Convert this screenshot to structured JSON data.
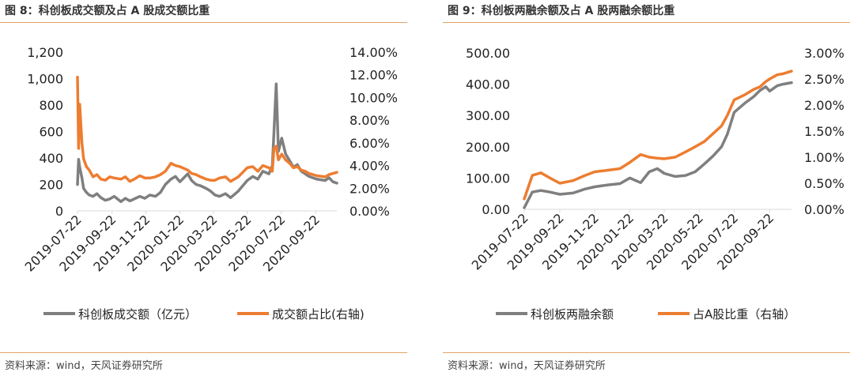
{
  "left": {
    "title": "图 8：科创板成交额及占 A 股成交额比重",
    "source": "资料来源：wind，天风证券研究所",
    "legend": [
      "科创板成交额（亿元）",
      "成交额占比(右轴)"
    ],
    "colors": {
      "gray": "#7f7f7f",
      "orange": "#ed7d31"
    }
  },
  "right": {
    "title": "图 9：科创板两融余额及占 A 股两融余额比重",
    "source": "资料来源：wind，天风证券研究所",
    "legend": [
      "科创板两融余额",
      "占A股比重（右轴）"
    ],
    "colors": {
      "gray": "#7f7f7f",
      "orange": "#ed7d31"
    }
  },
  "chart_data": [
    {
      "type": "line",
      "x_ticks": [
        "2019-07-22",
        "2019-09-22",
        "2019-11-22",
        "2020-01-22",
        "2020-03-22",
        "2020-05-22",
        "2020-07-22",
        "2020-09-22"
      ],
      "x_range": [
        "2019-07-22",
        "2020-10-30"
      ],
      "y_ticks": [
        "0",
        "200",
        "400",
        "600",
        "800",
        "1,000",
        "1,200"
      ],
      "ylim": [
        0,
        1200
      ],
      "y2_ticks": [
        "0.00%",
        "2.00%",
        "4.00%",
        "6.00%",
        "8.00%",
        "10.00%",
        "12.00%",
        "14.00%"
      ],
      "y2lim": [
        0,
        14
      ],
      "series": [
        {
          "name": "科创板成交额（亿元）",
          "axis": "left",
          "x": [
            "2019-07-22",
            "2019-07-24",
            "2019-07-26",
            "2019-07-30",
            "2019-08-02",
            "2019-08-07",
            "2019-08-12",
            "2019-08-19",
            "2019-08-26",
            "2019-09-02",
            "2019-09-10",
            "2019-09-18",
            "2019-09-26",
            "2019-10-08",
            "2019-10-16",
            "2019-10-24",
            "2019-11-01",
            "2019-11-11",
            "2019-11-20",
            "2019-11-29",
            "2019-12-09",
            "2019-12-18",
            "2019-12-27",
            "2020-01-06",
            "2020-01-14",
            "2020-01-22",
            "2020-02-05",
            "2020-02-12",
            "2020-02-20",
            "2020-02-28",
            "2020-03-09",
            "2020-03-17",
            "2020-03-25",
            "2020-04-02",
            "2020-04-13",
            "2020-04-22",
            "2020-05-06",
            "2020-05-14",
            "2020-05-22",
            "2020-06-01",
            "2020-06-10",
            "2020-06-19",
            "2020-06-30",
            "2020-07-06",
            "2020-07-09",
            "2020-07-13",
            "2020-07-17",
            "2020-07-23",
            "2020-07-30",
            "2020-08-06",
            "2020-08-13",
            "2020-08-20",
            "2020-08-27",
            "2020-09-03",
            "2020-09-10",
            "2020-09-17",
            "2020-09-24",
            "2020-10-09",
            "2020-10-16",
            "2020-10-23",
            "2020-10-30"
          ],
          "values": [
            200,
            390,
            330,
            250,
            170,
            140,
            120,
            110,
            130,
            100,
            80,
            90,
            110,
            70,
            95,
            75,
            90,
            110,
            95,
            120,
            110,
            140,
            200,
            240,
            260,
            220,
            280,
            230,
            200,
            190,
            170,
            150,
            120,
            110,
            130,
            100,
            150,
            190,
            230,
            260,
            240,
            300,
            280,
            340,
            600,
            960,
            450,
            550,
            430,
            380,
            330,
            350,
            300,
            280,
            260,
            250,
            240,
            230,
            250,
            220,
            210
          ]
        },
        {
          "name": "成交额占比(右轴)",
          "axis": "right",
          "x": [
            "2019-07-22",
            "2019-07-24",
            "2019-07-26",
            "2019-07-30",
            "2019-08-02",
            "2019-08-07",
            "2019-08-12",
            "2019-08-19",
            "2019-08-26",
            "2019-09-02",
            "2019-09-10",
            "2019-09-18",
            "2019-09-26",
            "2019-10-08",
            "2019-10-16",
            "2019-10-24",
            "2019-11-01",
            "2019-11-11",
            "2019-11-20",
            "2019-11-29",
            "2019-12-09",
            "2019-12-18",
            "2019-12-27",
            "2020-01-06",
            "2020-01-14",
            "2020-01-22",
            "2020-02-05",
            "2020-02-12",
            "2020-02-20",
            "2020-02-28",
            "2020-03-09",
            "2020-03-17",
            "2020-03-25",
            "2020-04-02",
            "2020-04-13",
            "2020-04-22",
            "2020-05-06",
            "2020-05-14",
            "2020-05-22",
            "2020-06-01",
            "2020-06-10",
            "2020-06-19",
            "2020-06-30",
            "2020-07-06",
            "2020-07-09",
            "2020-07-13",
            "2020-07-17",
            "2020-07-23",
            "2020-07-30",
            "2020-08-06",
            "2020-08-13",
            "2020-08-20",
            "2020-08-27",
            "2020-09-03",
            "2020-09-10",
            "2020-09-17",
            "2020-09-24",
            "2020-10-09",
            "2020-10-16",
            "2020-10-23",
            "2020-10-30"
          ],
          "values": [
            11.8,
            5.5,
            9.4,
            6.0,
            4.6,
            3.9,
            3.6,
            3.0,
            3.2,
            2.8,
            2.7,
            3.0,
            2.9,
            2.8,
            3.0,
            2.6,
            2.8,
            3.1,
            2.9,
            2.9,
            3.0,
            3.2,
            3.5,
            4.2,
            4.0,
            3.9,
            3.6,
            3.3,
            3.2,
            3.0,
            2.8,
            2.7,
            2.7,
            2.9,
            3.0,
            2.6,
            3.0,
            3.4,
            3.8,
            3.9,
            3.5,
            4.0,
            3.8,
            3.5,
            5.5,
            5.7,
            4.5,
            5.0,
            4.5,
            4.2,
            3.8,
            3.9,
            3.6,
            3.5,
            3.3,
            3.2,
            3.1,
            3.0,
            3.2,
            3.3,
            3.4
          ]
        }
      ]
    },
    {
      "type": "line",
      "x_ticks": [
        "2019-07-22",
        "2019-09-22",
        "2019-11-22",
        "2020-01-22",
        "2020-03-22",
        "2020-05-22",
        "2020-07-22",
        "2020-09-22"
      ],
      "x_range": [
        "2019-07-22",
        "2020-10-30"
      ],
      "y_ticks": [
        "0.00",
        "100.00",
        "200.00",
        "300.00",
        "400.00",
        "500.00"
      ],
      "ylim": [
        0,
        500
      ],
      "y2_ticks": [
        "0.00%",
        "0.50%",
        "1.00%",
        "1.50%",
        "2.00%",
        "2.50%",
        "3.00%"
      ],
      "y2lim": [
        0,
        3
      ],
      "series": [
        {
          "name": "科创板两融余额",
          "axis": "left",
          "x": [
            "2019-07-22",
            "2019-08-05",
            "2019-08-20",
            "2019-09-05",
            "2019-09-22",
            "2019-10-15",
            "2019-11-05",
            "2019-11-22",
            "2019-12-15",
            "2020-01-05",
            "2020-01-22",
            "2020-02-10",
            "2020-02-25",
            "2020-03-10",
            "2020-03-22",
            "2020-04-10",
            "2020-04-28",
            "2020-05-15",
            "2020-05-31",
            "2020-06-15",
            "2020-06-30",
            "2020-07-10",
            "2020-07-22",
            "2020-08-10",
            "2020-08-25",
            "2020-09-05",
            "2020-09-15",
            "2020-09-22",
            "2020-10-05",
            "2020-10-15",
            "2020-10-30"
          ],
          "values": [
            5,
            55,
            60,
            55,
            48,
            52,
            65,
            72,
            78,
            82,
            100,
            85,
            120,
            130,
            115,
            105,
            108,
            120,
            145,
            170,
            200,
            240,
            310,
            340,
            360,
            380,
            392,
            378,
            395,
            400,
            405
          ]
        },
        {
          "name": "占A股比重（右轴）",
          "axis": "right",
          "x": [
            "2019-07-22",
            "2019-08-05",
            "2019-08-20",
            "2019-09-05",
            "2019-09-22",
            "2019-10-15",
            "2019-11-05",
            "2019-11-22",
            "2019-12-15",
            "2020-01-05",
            "2020-01-22",
            "2020-02-10",
            "2020-02-25",
            "2020-03-10",
            "2020-03-22",
            "2020-04-10",
            "2020-04-28",
            "2020-05-15",
            "2020-05-31",
            "2020-06-15",
            "2020-06-30",
            "2020-07-10",
            "2020-07-22",
            "2020-08-10",
            "2020-08-25",
            "2020-09-05",
            "2020-09-15",
            "2020-09-22",
            "2020-10-05",
            "2020-10-15",
            "2020-10-30"
          ],
          "values": [
            0.2,
            0.65,
            0.7,
            0.6,
            0.5,
            0.55,
            0.65,
            0.72,
            0.75,
            0.78,
            0.9,
            1.05,
            1.0,
            0.98,
            0.97,
            1.0,
            1.1,
            1.2,
            1.3,
            1.45,
            1.6,
            1.8,
            2.1,
            2.2,
            2.3,
            2.35,
            2.45,
            2.5,
            2.58,
            2.6,
            2.65
          ]
        }
      ]
    }
  ]
}
